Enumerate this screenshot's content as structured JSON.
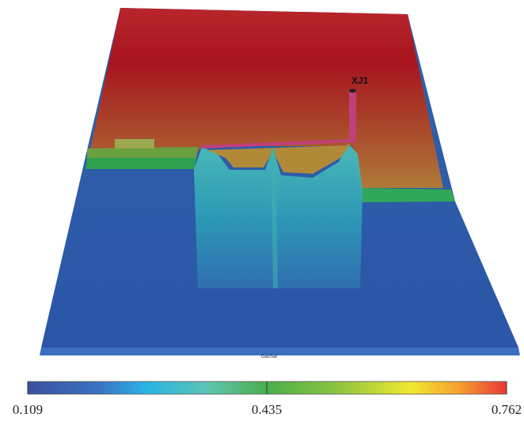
{
  "well_label": "XJ1",
  "property_label": "GasSat",
  "colorbar": {
    "ticks": [
      0.109,
      0.435,
      0.762
    ]
  }
}
